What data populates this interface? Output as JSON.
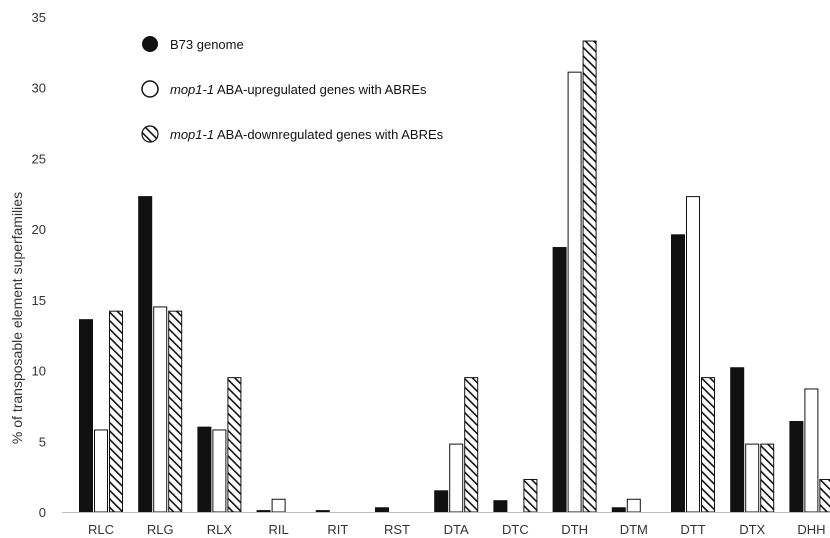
{
  "chart_data": {
    "type": "bar",
    "ylabel": "% of transposable element superfamilies",
    "ylim": [
      0,
      35
    ],
    "yticks": [
      0,
      5,
      10,
      15,
      20,
      25,
      30,
      35
    ],
    "grid": false,
    "legend_position": "top-left",
    "categories": [
      "RLC",
      "RLG",
      "RLX",
      "RIL",
      "RIT",
      "RST",
      "DTA",
      "DTC",
      "DTH",
      "DTM",
      "DTT",
      "DTX",
      "DHH"
    ],
    "series": [
      {
        "name": "B73 genome",
        "style": "solid",
        "color": "#111111",
        "values": [
          13.6,
          22.3,
          6.0,
          0.1,
          0.1,
          0.3,
          1.5,
          0.8,
          18.7,
          0.3,
          19.6,
          10.2,
          6.4
        ]
      },
      {
        "name_italic": "mop1-1",
        "name_rest": " ABA-upregulated genes with ABREs",
        "style": "open",
        "color": "#ffffff",
        "values": [
          5.8,
          14.5,
          5.8,
          0.9,
          0,
          0,
          4.8,
          0,
          31.1,
          0.9,
          22.3,
          4.8,
          8.7
        ]
      },
      {
        "name_italic": "mop1-1",
        "name_rest": " ABA-downregulated genes with ABREs",
        "style": "hatched",
        "color": "#111111",
        "values": [
          14.2,
          14.2,
          9.5,
          0,
          0,
          0,
          9.5,
          2.3,
          33.3,
          0,
          9.5,
          4.8,
          2.3
        ]
      }
    ]
  }
}
